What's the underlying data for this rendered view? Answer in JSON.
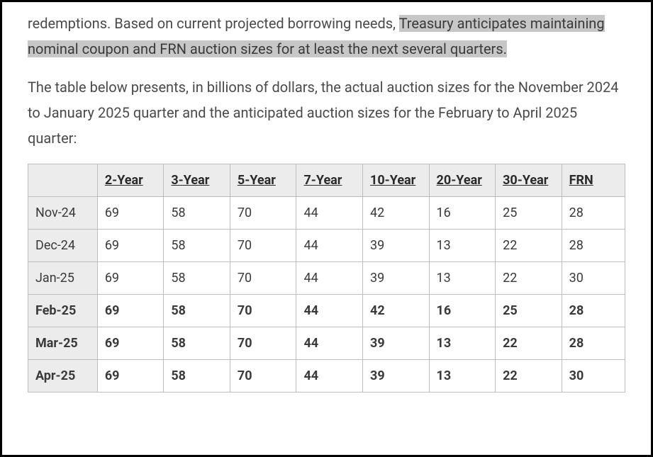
{
  "paragraphs": {
    "p1_prefix": "redemptions. Based on current projected borrowing needs, ",
    "p1_highlight": "Treasury anticipates maintaining nominal coupon and FRN auction sizes for at least the next several quarters.",
    "p2": "The table below presents, in billions of dollars, the actual auction sizes for the November 2024 to January 2025 quarter and the anticipated auction sizes for the February to April 2025 quarter:"
  },
  "table": {
    "columns": [
      "",
      "2-Year",
      "3-Year",
      "5-Year",
      "7-Year",
      "10-Year",
      "20-Year",
      "30-Year",
      "FRN"
    ],
    "rows": [
      {
        "label": "Nov-24",
        "anticipated": false,
        "cells": [
          "69",
          "58",
          "70",
          "44",
          "42",
          "16",
          "25",
          "28"
        ]
      },
      {
        "label": "Dec-24",
        "anticipated": false,
        "cells": [
          "69",
          "58",
          "70",
          "44",
          "39",
          "13",
          "22",
          "28"
        ]
      },
      {
        "label": "Jan-25",
        "anticipated": false,
        "cells": [
          "69",
          "58",
          "70",
          "44",
          "39",
          "13",
          "22",
          "30"
        ]
      },
      {
        "label": "Feb-25",
        "anticipated": true,
        "cells": [
          "69",
          "58",
          "70",
          "44",
          "42",
          "16",
          "25",
          "28"
        ]
      },
      {
        "label": "Mar-25",
        "anticipated": true,
        "cells": [
          "69",
          "58",
          "70",
          "44",
          "39",
          "13",
          "22",
          "28"
        ]
      },
      {
        "label": "Apr-25",
        "anticipated": true,
        "cells": [
          "69",
          "58",
          "70",
          "44",
          "39",
          "13",
          "22",
          "30"
        ]
      }
    ]
  },
  "style": {
    "highlight_bg": "#c7c7c7",
    "border_color": "#bdbdbd",
    "header_bg": "#ececec",
    "text_color": "#3a3a3a"
  }
}
